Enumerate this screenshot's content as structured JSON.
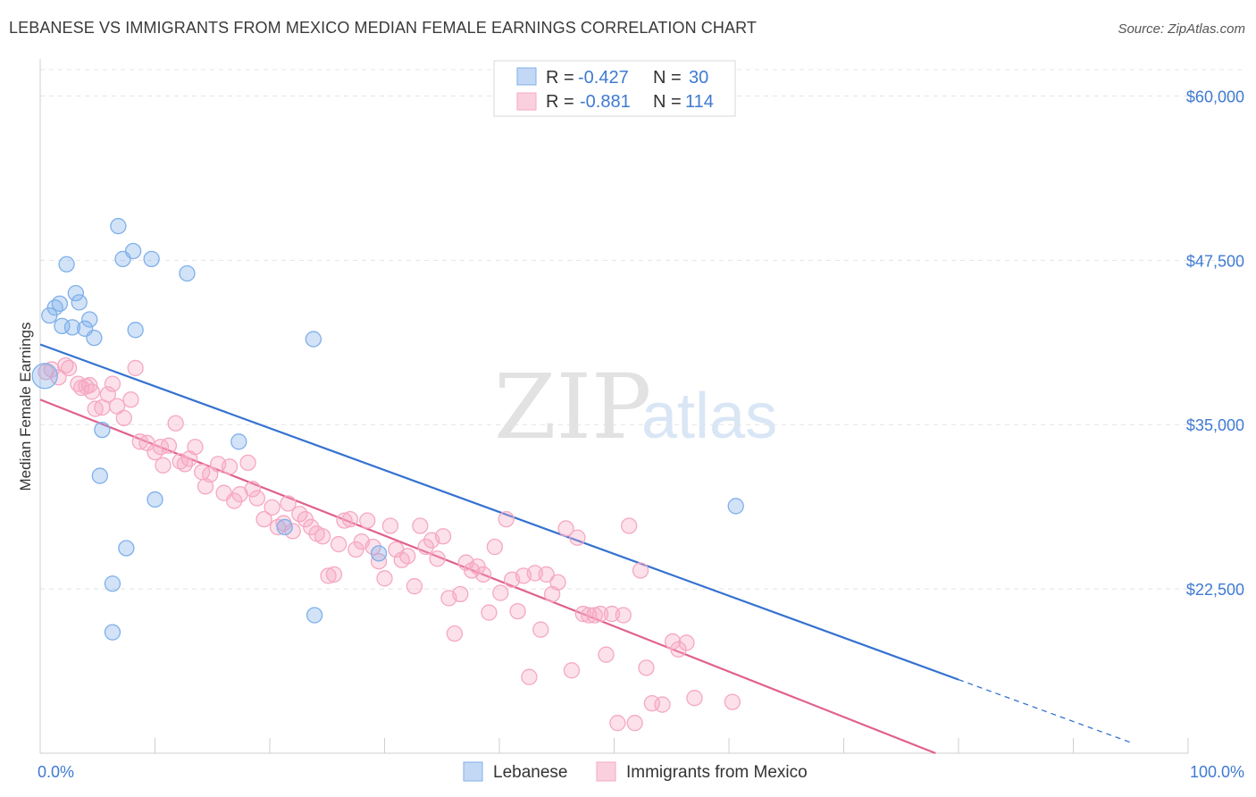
{
  "title": "LEBANESE VS IMMIGRANTS FROM MEXICO MEDIAN FEMALE EARNINGS CORRELATION CHART",
  "source": "Source: ZipAtlas.com",
  "watermark": {
    "zip": "ZIP",
    "atlas": "atlas"
  },
  "chart_data": {
    "type": "scatter",
    "xlabel": "",
    "ylabel": "Median Female Earnings",
    "xlim": [
      0,
      100
    ],
    "ylim": [
      10000,
      62000
    ],
    "x_tick_labels": [
      "0.0%",
      "100.0%"
    ],
    "y_ticks": [
      22500,
      35000,
      47500,
      60000
    ],
    "y_tick_labels": [
      "$22,500",
      "$35,000",
      "$47,500",
      "$60,000"
    ],
    "legend": [
      {
        "r_label": "R = ",
        "r_value": "-0.427",
        "n_label": "N = ",
        "n_value": "30"
      },
      {
        "r_label": "R = ",
        "r_value": "-0.881",
        "n_label": "N = ",
        "n_value": "114"
      }
    ],
    "series": [
      {
        "name": "Lebanese",
        "color": "#7fb0ea",
        "line_color": "#3472d0",
        "trend": {
          "x0": 0,
          "y0": 41100,
          "x1": 80,
          "y1": 15600,
          "dash_to_x": 95
        },
        "points": [
          [
            0.4,
            38700
          ],
          [
            0.8,
            43300
          ],
          [
            1.3,
            43900
          ],
          [
            1.7,
            44200
          ],
          [
            1.9,
            42500
          ],
          [
            2.3,
            47200
          ],
          [
            2.8,
            42400
          ],
          [
            3.1,
            45000
          ],
          [
            3.4,
            44300
          ],
          [
            3.9,
            42300
          ],
          [
            4.3,
            43000
          ],
          [
            4.7,
            41600
          ],
          [
            5.4,
            34600
          ],
          [
            5.2,
            31100
          ],
          [
            6.3,
            22900
          ],
          [
            6.3,
            19200
          ],
          [
            6.8,
            50100
          ],
          [
            7.2,
            47600
          ],
          [
            7.5,
            25600
          ],
          [
            8.1,
            48200
          ],
          [
            8.3,
            42200
          ],
          [
            9.7,
            47600
          ],
          [
            10.0,
            29300
          ],
          [
            12.8,
            46500
          ],
          [
            17.3,
            33700
          ],
          [
            21.3,
            27200
          ],
          [
            23.8,
            41500
          ],
          [
            23.9,
            20500
          ],
          [
            29.5,
            25200
          ],
          [
            60.6,
            28800
          ]
        ]
      },
      {
        "name": "Immigrants from Mexico",
        "color": "#f5a8c2",
        "line_color": "#e0608e",
        "trend": {
          "x0": 0,
          "y0": 36900,
          "x1": 78,
          "y1": 10000
        },
        "points": [
          [
            0.5,
            39000
          ],
          [
            1.0,
            39200
          ],
          [
            1.6,
            38600
          ],
          [
            2.2,
            39500
          ],
          [
            2.5,
            39300
          ],
          [
            3.3,
            38100
          ],
          [
            3.6,
            37800
          ],
          [
            4.0,
            37900
          ],
          [
            4.3,
            38000
          ],
          [
            4.5,
            37500
          ],
          [
            4.8,
            36200
          ],
          [
            5.4,
            36300
          ],
          [
            5.9,
            37300
          ],
          [
            6.3,
            38100
          ],
          [
            6.7,
            36400
          ],
          [
            7.3,
            35500
          ],
          [
            7.9,
            36900
          ],
          [
            8.3,
            39300
          ],
          [
            8.7,
            33700
          ],
          [
            9.3,
            33600
          ],
          [
            10.0,
            32900
          ],
          [
            10.5,
            33300
          ],
          [
            10.7,
            31900
          ],
          [
            11.2,
            33400
          ],
          [
            11.8,
            35100
          ],
          [
            12.2,
            32200
          ],
          [
            12.6,
            32000
          ],
          [
            13.0,
            32400
          ],
          [
            13.5,
            33300
          ],
          [
            14.1,
            31400
          ],
          [
            14.4,
            30300
          ],
          [
            14.8,
            31200
          ],
          [
            15.5,
            32000
          ],
          [
            16.0,
            29800
          ],
          [
            16.5,
            31800
          ],
          [
            16.9,
            29200
          ],
          [
            17.4,
            29700
          ],
          [
            18.1,
            32100
          ],
          [
            18.5,
            30100
          ],
          [
            18.9,
            29400
          ],
          [
            19.5,
            27800
          ],
          [
            20.2,
            28700
          ],
          [
            20.7,
            27200
          ],
          [
            21.2,
            27500
          ],
          [
            21.6,
            29000
          ],
          [
            22.0,
            26900
          ],
          [
            22.6,
            28200
          ],
          [
            23.1,
            27800
          ],
          [
            23.6,
            27200
          ],
          [
            24.1,
            26700
          ],
          [
            24.6,
            26500
          ],
          [
            25.1,
            23500
          ],
          [
            25.6,
            23600
          ],
          [
            26.0,
            25900
          ],
          [
            26.5,
            27700
          ],
          [
            27.0,
            27800
          ],
          [
            27.5,
            25500
          ],
          [
            28.0,
            26100
          ],
          [
            28.5,
            27700
          ],
          [
            29.0,
            25700
          ],
          [
            29.5,
            24600
          ],
          [
            30.0,
            23300
          ],
          [
            30.5,
            27300
          ],
          [
            31.0,
            25500
          ],
          [
            31.5,
            24700
          ],
          [
            32.0,
            25000
          ],
          [
            32.6,
            22700
          ],
          [
            33.1,
            27300
          ],
          [
            33.6,
            25700
          ],
          [
            34.1,
            26200
          ],
          [
            34.6,
            24800
          ],
          [
            35.1,
            26500
          ],
          [
            35.6,
            21800
          ],
          [
            36.1,
            19100
          ],
          [
            36.6,
            22100
          ],
          [
            37.1,
            24500
          ],
          [
            37.6,
            23900
          ],
          [
            38.1,
            24200
          ],
          [
            38.6,
            23600
          ],
          [
            39.1,
            20700
          ],
          [
            39.6,
            25700
          ],
          [
            40.1,
            22200
          ],
          [
            40.6,
            27800
          ],
          [
            41.1,
            23200
          ],
          [
            41.6,
            20800
          ],
          [
            42.1,
            23500
          ],
          [
            42.6,
            15800
          ],
          [
            43.1,
            23700
          ],
          [
            43.6,
            19400
          ],
          [
            44.1,
            23600
          ],
          [
            44.6,
            22100
          ],
          [
            45.1,
            23000
          ],
          [
            45.8,
            27100
          ],
          [
            46.3,
            16300
          ],
          [
            46.8,
            26400
          ],
          [
            47.3,
            20600
          ],
          [
            47.8,
            20500
          ],
          [
            48.3,
            20500
          ],
          [
            48.8,
            20600
          ],
          [
            49.3,
            17500
          ],
          [
            49.8,
            20600
          ],
          [
            50.3,
            12300
          ],
          [
            50.8,
            20500
          ],
          [
            51.3,
            27300
          ],
          [
            51.8,
            12300
          ],
          [
            52.3,
            23900
          ],
          [
            52.8,
            16500
          ],
          [
            53.3,
            13800
          ],
          [
            54.2,
            13700
          ],
          [
            55.1,
            18500
          ],
          [
            55.6,
            17900
          ],
          [
            56.3,
            18400
          ],
          [
            57.0,
            14200
          ],
          [
            60.3,
            13900
          ]
        ]
      }
    ]
  },
  "bottom_legend": [
    "Lebanese",
    "Immigrants from Mexico"
  ]
}
